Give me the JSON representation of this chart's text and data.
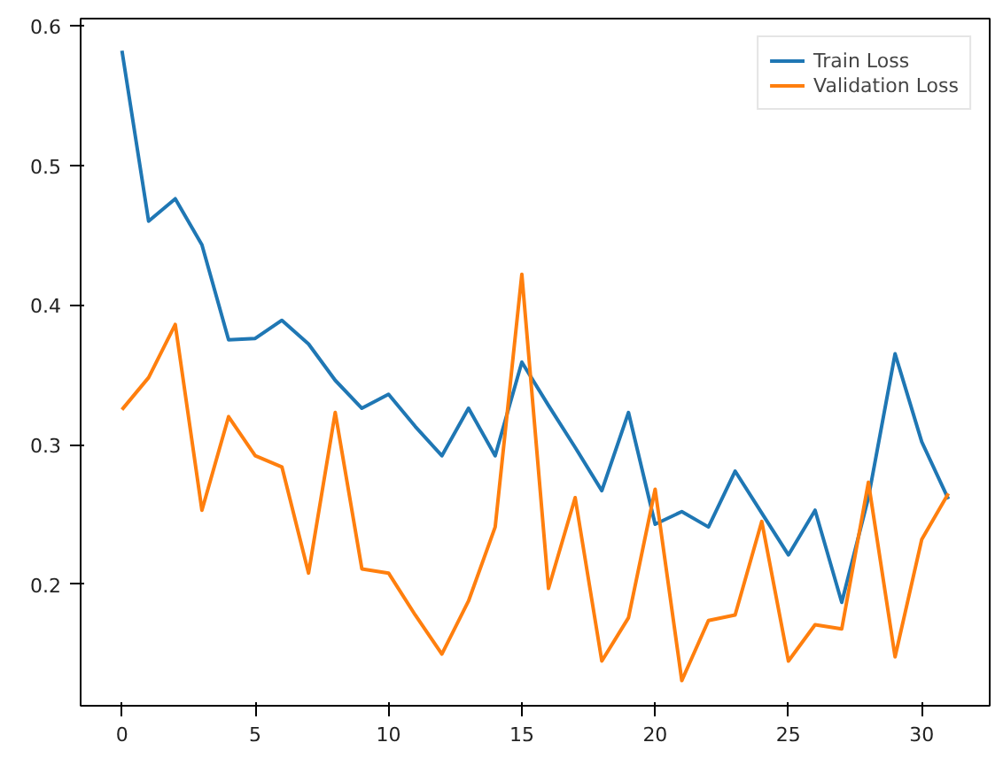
{
  "chart_data": {
    "type": "line",
    "x": [
      0,
      1,
      2,
      3,
      4,
      5,
      6,
      7,
      8,
      9,
      10,
      11,
      12,
      13,
      14,
      15,
      16,
      17,
      18,
      19,
      20,
      21,
      22,
      23,
      24,
      25,
      26,
      27,
      28,
      29,
      30,
      31
    ],
    "series": [
      {
        "name": "Train Loss",
        "color": "#1f77b4",
        "values": [
          0.582,
          0.46,
          0.476,
          0.443,
          0.375,
          0.376,
          0.389,
          0.372,
          0.346,
          0.326,
          0.336,
          0.313,
          0.292,
          0.326,
          0.292,
          0.359,
          0.328,
          0.298,
          0.267,
          0.323,
          0.243,
          0.252,
          0.241,
          0.281,
          0.251,
          0.221,
          0.253,
          0.187,
          0.262,
          0.365,
          0.302,
          0.261
        ]
      },
      {
        "name": "Validation Loss",
        "color": "#ff7f0e",
        "values": [
          0.325,
          0.348,
          0.386,
          0.253,
          0.32,
          0.292,
          0.284,
          0.208,
          0.323,
          0.211,
          0.208,
          0.178,
          0.15,
          0.188,
          0.241,
          0.422,
          0.197,
          0.262,
          0.145,
          0.176,
          0.268,
          0.131,
          0.174,
          0.178,
          0.245,
          0.145,
          0.171,
          0.168,
          0.273,
          0.148,
          0.232,
          0.265
        ]
      }
    ],
    "xlim": [
      -1.55,
      32.55
    ],
    "ylim": [
      0.113,
      0.605
    ],
    "xticks": [
      0,
      5,
      10,
      15,
      20,
      25,
      30
    ],
    "yticks": [
      0.2,
      0.3,
      0.4,
      0.5,
      0.6
    ],
    "grid": false,
    "legend": "top right",
    "marker": "none",
    "line_style": "solid"
  }
}
